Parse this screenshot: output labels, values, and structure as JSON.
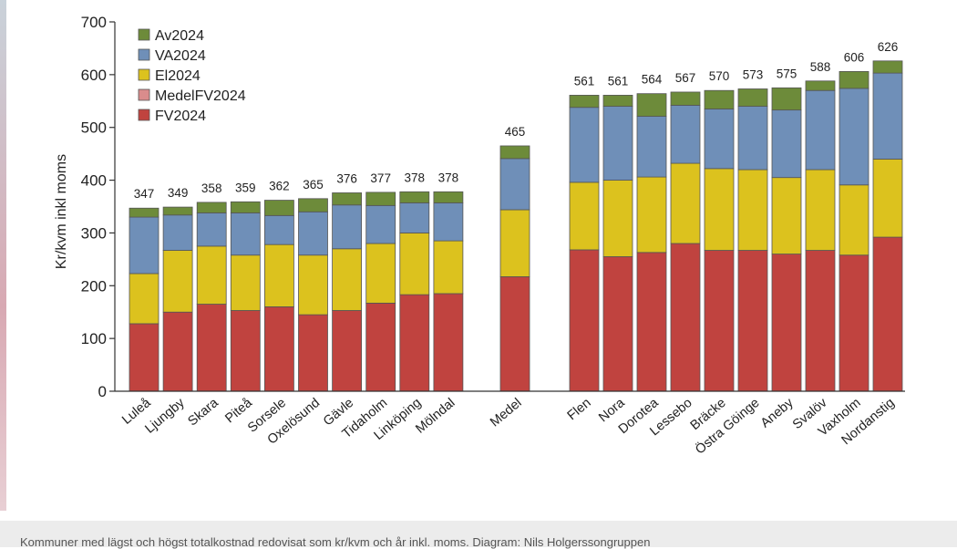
{
  "caption": "Kommuner med lägst och högst totalkostnad redovisat som kr/kvm och år inkl. moms. Diagram: Nils Holgerssongruppen",
  "chart_data": {
    "type": "bar",
    "stacked": true,
    "title": "",
    "xlabel": "",
    "ylabel": "Kr/kvm inkl moms",
    "ylim": [
      0,
      700
    ],
    "yticks": [
      0,
      100,
      200,
      300,
      400,
      500,
      600,
      700
    ],
    "grid": false,
    "legend_position": "top-left",
    "categories": [
      "Luleå",
      "Ljungby",
      "Skara",
      "Piteå",
      "Sorsele",
      "Oxelösund",
      "Gävle",
      "Tidaholm",
      "Linköping",
      "Mölndal",
      "Medel",
      "Flen",
      "Nora",
      "Dorotea",
      "Lessebo",
      "Bräcke",
      "Östra Göinge",
      "Aneby",
      "Svalöv",
      "Vaxholm",
      "Nordanstig"
    ],
    "totals": [
      347,
      349,
      358,
      359,
      362,
      365,
      376,
      377,
      378,
      378,
      465,
      561,
      561,
      564,
      567,
      570,
      573,
      575,
      588,
      606,
      626
    ],
    "legend": [
      {
        "name": "Av2024",
        "color": "#6d8b3a"
      },
      {
        "name": "VA2024",
        "color": "#6f8fb8"
      },
      {
        "name": "El2024",
        "color": "#dcc21e"
      },
      {
        "name": "MedelFV2024",
        "color": "#d98c8c"
      },
      {
        "name": "FV2024",
        "color": "#c0433f"
      }
    ],
    "series": [
      {
        "name": "FV2024",
        "color": "#c0433f",
        "values": [
          128,
          150,
          165,
          153,
          160,
          145,
          153,
          167,
          183,
          185,
          217,
          268,
          255,
          263,
          280,
          267,
          267,
          260,
          267,
          258,
          292
        ]
      },
      {
        "name": "El2024",
        "color": "#dcc21e",
        "values": [
          95,
          117,
          110,
          105,
          118,
          113,
          117,
          113,
          117,
          100,
          127,
          128,
          145,
          143,
          152,
          155,
          153,
          145,
          153,
          133,
          148
        ]
      },
      {
        "name": "VA2024",
        "color": "#6f8fb8",
        "values": [
          107,
          67,
          63,
          80,
          55,
          82,
          83,
          72,
          57,
          72,
          97,
          142,
          140,
          115,
          110,
          113,
          120,
          128,
          150,
          183,
          163
        ]
      },
      {
        "name": "Av2024",
        "color": "#6d8b3a",
        "values": [
          17,
          15,
          20,
          21,
          29,
          25,
          23,
          25,
          21,
          21,
          24,
          23,
          21,
          43,
          25,
          35,
          33,
          42,
          18,
          32,
          23
        ]
      }
    ]
  }
}
